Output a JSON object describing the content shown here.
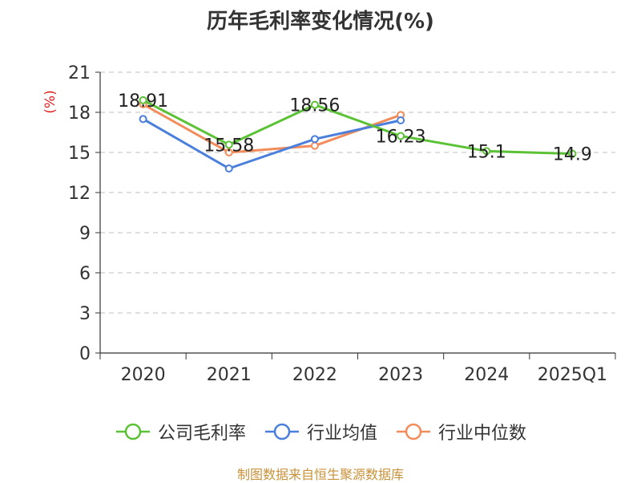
{
  "chart_data": {
    "type": "line",
    "title": "历年毛利率变化情况(%)",
    "ylabel": "(%)",
    "categories": [
      "2020",
      "2021",
      "2022",
      "2023",
      "2024",
      "2025Q1"
    ],
    "ylim": [
      0,
      21
    ],
    "yticks": [
      0,
      3,
      6,
      9,
      12,
      15,
      18,
      21
    ],
    "grid": true,
    "legend_position": "bottom",
    "series": [
      {
        "name": "公司毛利率",
        "color": "#5bc236",
        "values": [
          18.91,
          15.58,
          18.56,
          16.23,
          15.1,
          14.9
        ],
        "labels": [
          "18.91",
          "15.58",
          "18.56",
          "16.23",
          "15.1",
          "14.9"
        ]
      },
      {
        "name": "行业均值",
        "color": "#4a7fdc",
        "values": [
          17.5,
          13.8,
          16.0,
          17.4,
          null,
          null
        ]
      },
      {
        "name": "行业中位数",
        "color": "#f28c5a",
        "values": [
          18.6,
          15.0,
          15.5,
          17.8,
          null,
          null
        ]
      }
    ]
  },
  "source": "制图数据来自恒生聚源数据库"
}
